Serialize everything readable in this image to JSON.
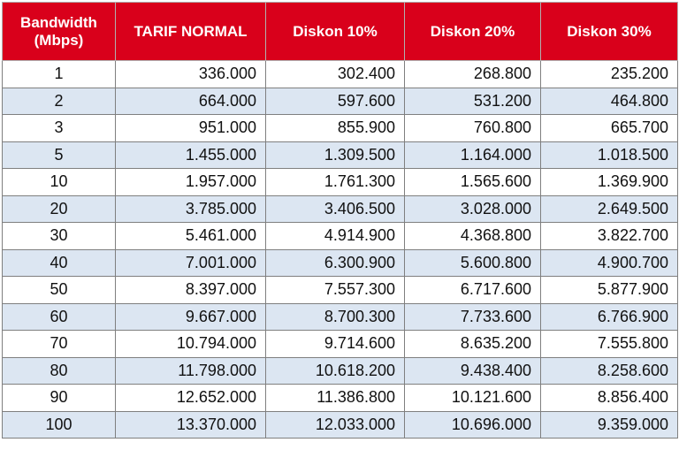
{
  "header": {
    "bandwidth_line1": "Bandwidth",
    "bandwidth_line2": "(Mbps)",
    "tarif_normal": "TARIF NORMAL",
    "diskon_10": "Diskon 10%",
    "diskon_20": "Diskon 20%",
    "diskon_30": "Diskon 30%"
  },
  "rows": [
    [
      "1",
      "336.000",
      "302.400",
      "268.800",
      "235.200"
    ],
    [
      "2",
      "664.000",
      "597.600",
      "531.200",
      "464.800"
    ],
    [
      "3",
      "951.000",
      "855.900",
      "760.800",
      "665.700"
    ],
    [
      "5",
      "1.455.000",
      "1.309.500",
      "1.164.000",
      "1.018.500"
    ],
    [
      "10",
      "1.957.000",
      "1.761.300",
      "1.565.600",
      "1.369.900"
    ],
    [
      "20",
      "3.785.000",
      "3.406.500",
      "3.028.000",
      "2.649.500"
    ],
    [
      "30",
      "5.461.000",
      "4.914.900",
      "4.368.800",
      "3.822.700"
    ],
    [
      "40",
      "7.001.000",
      "6.300.900",
      "5.600.800",
      "4.900.700"
    ],
    [
      "50",
      "8.397.000",
      "7.557.300",
      "6.717.600",
      "5.877.900"
    ],
    [
      "60",
      "9.667.000",
      "8.700.300",
      "7.733.600",
      "6.766.900"
    ],
    [
      "70",
      "10.794.000",
      "9.714.600",
      "8.635.200",
      "7.555.800"
    ],
    [
      "80",
      "11.798.000",
      "10.618.200",
      "9.438.400",
      "8.258.600"
    ],
    [
      "90",
      "12.652.000",
      "11.386.800",
      "10.121.600",
      "8.856.400"
    ],
    [
      "100",
      "13.370.000",
      "12.033.000",
      "10.696.000",
      "9.359.000"
    ]
  ],
  "colors": {
    "header_bg": "#d9001b",
    "header_text": "#ffffff",
    "row_alt_bg": "#dce6f2",
    "row_bg": "#ffffff",
    "border": "#7f7f7f"
  }
}
